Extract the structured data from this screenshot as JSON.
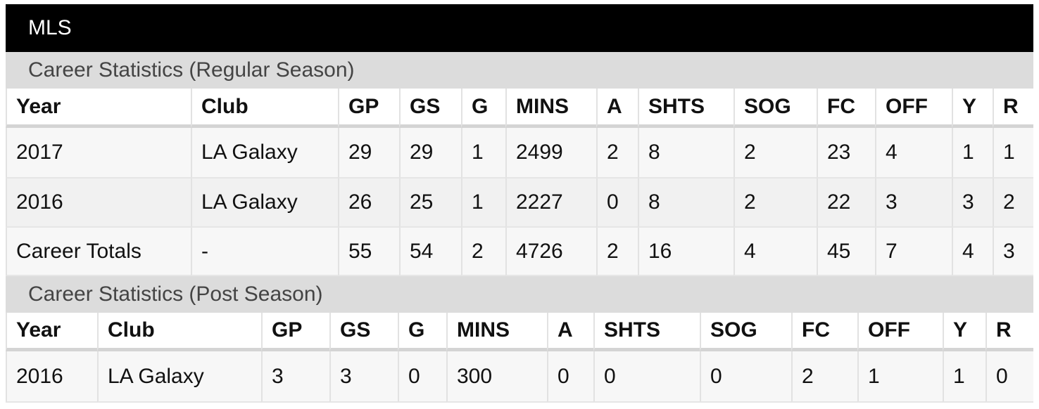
{
  "header": {
    "title": "MLS"
  },
  "sections": [
    {
      "title": "Career Statistics (Regular Season)",
      "table": {
        "columns": [
          "Year",
          "Club",
          "GP",
          "GS",
          "G",
          "MINS",
          "A",
          "SHTS",
          "SOG",
          "FC",
          "OFF",
          "Y",
          "R"
        ],
        "rows": [
          [
            "2017",
            "LA Galaxy",
            "29",
            "29",
            "1",
            "2499",
            "2",
            "8",
            "2",
            "23",
            "4",
            "1",
            "1"
          ],
          [
            "2016",
            "LA Galaxy",
            "26",
            "25",
            "1",
            "2227",
            "0",
            "8",
            "2",
            "22",
            "3",
            "3",
            "2"
          ],
          [
            "Career Totals",
            "-",
            "55",
            "54",
            "2",
            "4726",
            "2",
            "16",
            "4",
            "45",
            "7",
            "4",
            "3"
          ]
        ]
      }
    },
    {
      "title": "Career Statistics (Post Season)",
      "table": {
        "columns": [
          "Year",
          "Club",
          "GP",
          "GS",
          "G",
          "MINS",
          "A",
          "SHTS",
          "SOG",
          "FC",
          "OFF",
          "Y",
          "R"
        ],
        "rows": [
          [
            "2016",
            "LA Galaxy",
            "3",
            "3",
            "0",
            "300",
            "0",
            "0",
            "0",
            "2",
            "1",
            "1",
            "0"
          ]
        ]
      }
    }
  ]
}
